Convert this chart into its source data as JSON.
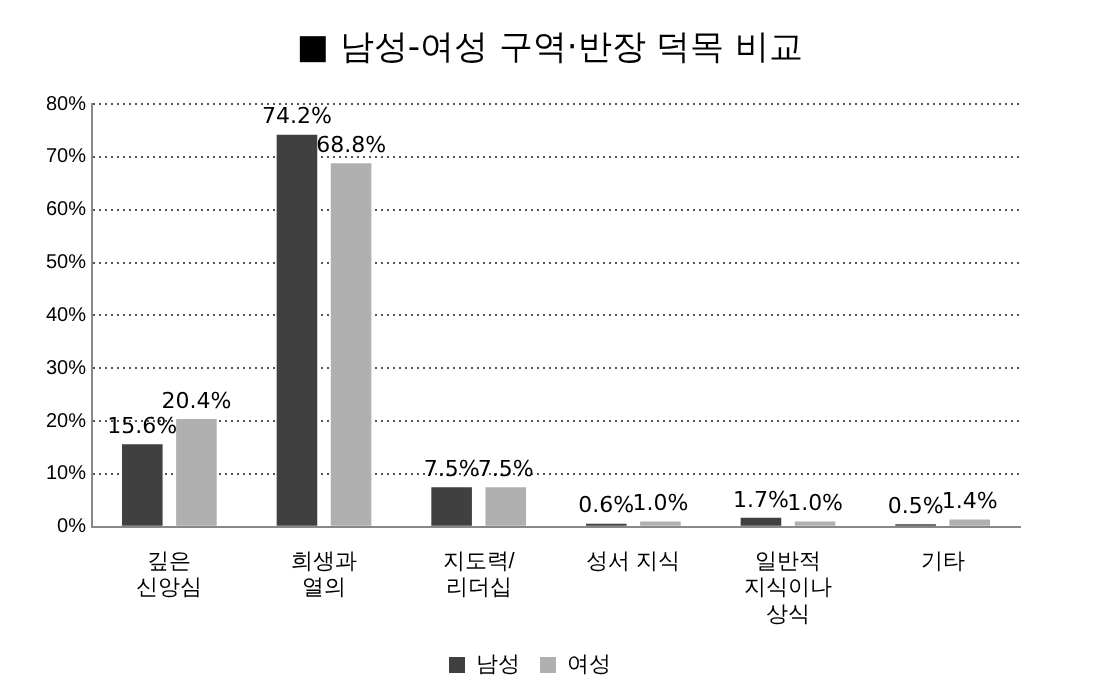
{
  "chart_data": {
    "type": "bar",
    "title": "■ 남성-여성 구역·반장 덕목 비교",
    "categories": [
      "깊은\n신앙심",
      "희생과\n열의",
      "지도력/\n리더십",
      "성서 지식",
      "일반적\n지식이나\n상식",
      "기타"
    ],
    "series": [
      {
        "name": "남성",
        "color": "#404040",
        "values": [
          15.6,
          74.2,
          7.5,
          0.6,
          1.7,
          0.5
        ],
        "value_labels": [
          "15.6%",
          "74.2%",
          "7.5%",
          "0.6%",
          "1.7%",
          "0.5%"
        ]
      },
      {
        "name": "여성",
        "color": "#b0b0b0",
        "values": [
          20.4,
          68.8,
          7.5,
          1.0,
          1.0,
          1.4
        ],
        "value_labels": [
          "20.4%",
          "68.8%",
          "7.5%",
          "1.0%",
          "1.0%",
          "1.4%"
        ]
      }
    ],
    "ylim": [
      0,
      80
    ],
    "yticks": [
      {
        "value": 0,
        "label": "0%"
      },
      {
        "value": 10,
        "label": "10%"
      },
      {
        "value": 20,
        "label": "20%"
      },
      {
        "value": 30,
        "label": "30%"
      },
      {
        "value": 40,
        "label": "40%"
      },
      {
        "value": 50,
        "label": "50%"
      },
      {
        "value": 60,
        "label": "60%"
      },
      {
        "value": 70,
        "label": "70%"
      },
      {
        "value": 80,
        "label": "80%"
      }
    ],
    "grid": "y",
    "legend": "bottom"
  }
}
